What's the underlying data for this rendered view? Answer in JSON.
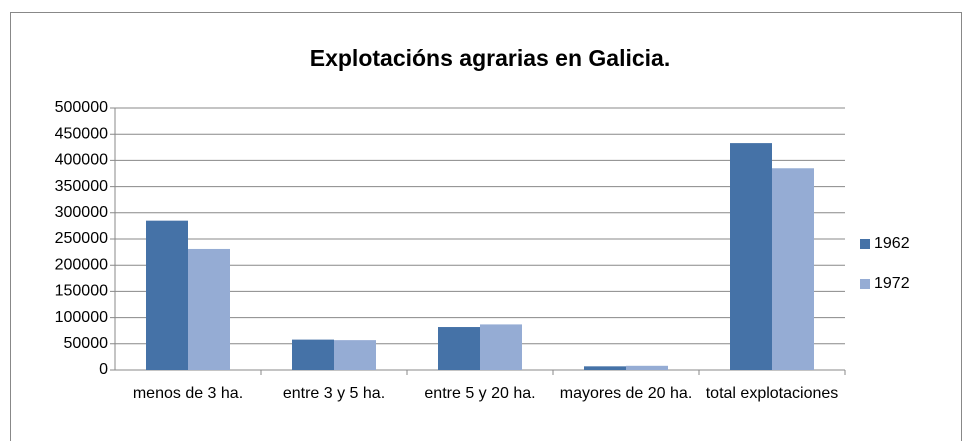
{
  "chart_data": {
    "type": "bar",
    "title": "Explotacións agrarias en Galicia.",
    "categories": [
      "menos de 3 ha.",
      "entre 3 y 5 ha.",
      "entre 5 y 20 ha.",
      "mayores de 20 ha.",
      "total explotaciones"
    ],
    "series": [
      {
        "name": "1962",
        "color": "#4572a7",
        "values": [
          285000,
          58000,
          82000,
          7000,
          433000
        ]
      },
      {
        "name": "1972",
        "color": "#95acd4",
        "values": [
          231000,
          57000,
          87000,
          8000,
          385000
        ]
      }
    ],
    "ylim": [
      0,
      500000
    ],
    "yticks": [
      0,
      50000,
      100000,
      150000,
      200000,
      250000,
      300000,
      350000,
      400000,
      450000,
      500000
    ],
    "grid": true,
    "legend": "right"
  }
}
